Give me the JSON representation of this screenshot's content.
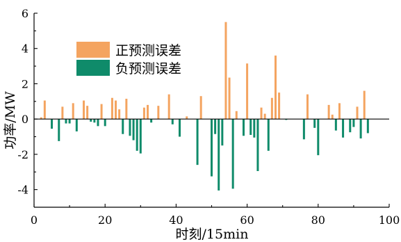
{
  "chart_data": {
    "type": "bar",
    "xlabel": "时刻/15min",
    "ylabel": "功率/MW",
    "xlim": [
      0,
      100
    ],
    "ylim": [
      -5,
      6
    ],
    "xticks": [
      0,
      20,
      40,
      60,
      80,
      100
    ],
    "yticks": [
      -4,
      -2,
      0,
      2,
      4,
      6
    ],
    "grid": false,
    "legend_position": "upper-left",
    "series": [
      {
        "name": "正预测误差",
        "color": "#f4a460",
        "x": [
          2,
          3,
          8,
          11,
          14,
          15,
          19,
          22,
          23,
          24,
          26,
          31,
          32,
          35,
          38,
          43,
          47,
          54,
          55,
          57,
          60,
          64,
          65,
          67,
          68,
          69,
          77,
          83,
          84,
          86,
          91,
          93
        ],
        "values": [
          0.1,
          1.05,
          0.7,
          0.9,
          1.05,
          0.75,
          0.85,
          1.2,
          1.05,
          0.55,
          1.15,
          0.65,
          0.8,
          0.75,
          1.4,
          0.15,
          1.3,
          5.5,
          2.35,
          0.45,
          3.15,
          0.65,
          0.3,
          1.2,
          3.6,
          1.5,
          1.4,
          0.8,
          0.25,
          0.9,
          0.7,
          1.6
        ]
      },
      {
        "name": "负预测误差",
        "color": "#0f8b6a",
        "x": [
          5,
          7,
          9,
          10,
          12,
          16,
          17,
          18,
          20,
          25,
          27,
          28,
          29,
          30,
          33,
          39,
          41,
          46,
          50,
          51,
          52,
          53,
          56,
          59,
          61,
          62,
          63,
          66,
          71,
          76,
          79,
          80,
          85,
          87,
          89,
          90,
          92,
          94
        ],
        "values": [
          -0.55,
          -1.25,
          -0.25,
          -0.25,
          -0.7,
          -0.15,
          -0.2,
          -0.4,
          -0.4,
          -0.85,
          -0.95,
          -1.2,
          -1.8,
          -1.95,
          -0.2,
          -0.3,
          -1.0,
          -2.6,
          -3.25,
          -0.85,
          -4.05,
          -1.5,
          -3.95,
          -0.95,
          -0.9,
          -1.05,
          -2.95,
          -1.8,
          -0.05,
          -1.15,
          -0.5,
          -2.05,
          -0.65,
          -1.05,
          -0.75,
          -0.45,
          -1.1,
          -0.8
        ]
      }
    ]
  }
}
